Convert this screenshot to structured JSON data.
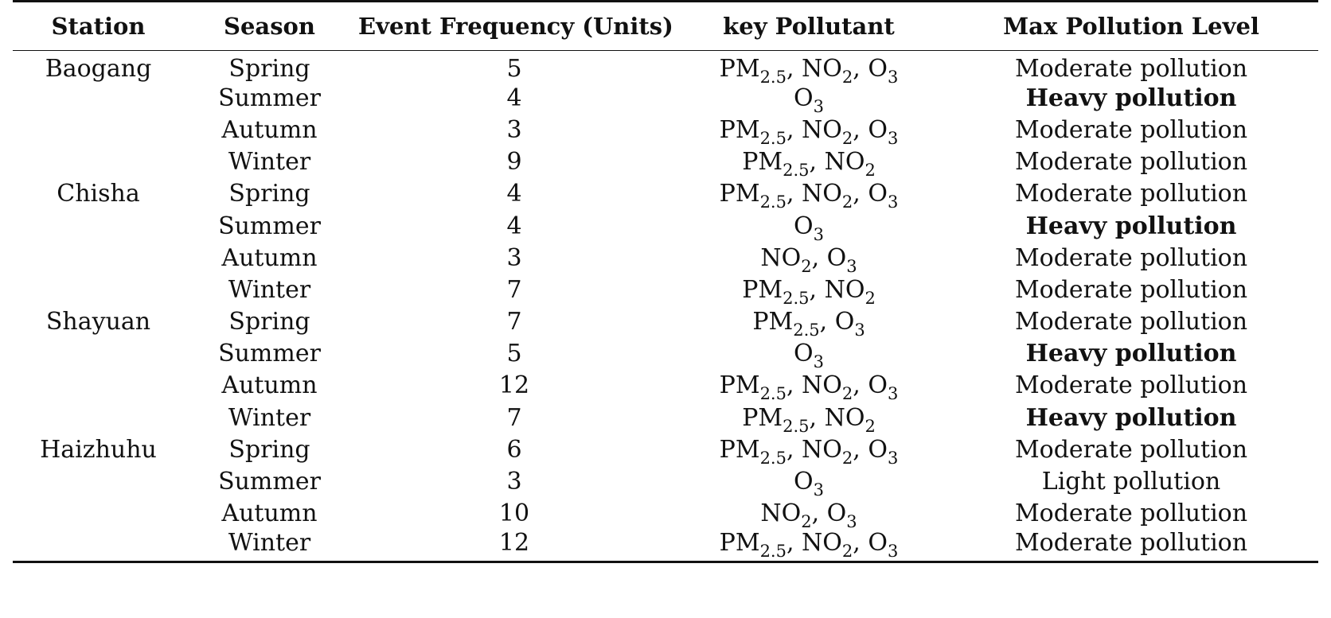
{
  "table": {
    "headers": [
      "Station",
      "Season",
      "Event Frequency (Units)",
      "key Pollutant",
      "Max Pollution Level"
    ],
    "rows": [
      {
        "station": "Baogang",
        "season": "Spring",
        "frequency": "5",
        "pollutants": [
          {
            "b": "PM",
            "s": "2.5"
          },
          {
            "b": "NO",
            "s": "2"
          },
          {
            "b": "O",
            "s": "3"
          }
        ],
        "level": "Moderate pollution",
        "bold": false
      },
      {
        "station": "",
        "season": "Summer",
        "frequency": "4",
        "pollutants": [
          {
            "b": "O",
            "s": "3"
          }
        ],
        "level": "Heavy pollution",
        "bold": true
      },
      {
        "station": "",
        "season": "Autumn",
        "frequency": "3",
        "pollutants": [
          {
            "b": "PM",
            "s": "2.5"
          },
          {
            "b": "NO",
            "s": "2"
          },
          {
            "b": "O",
            "s": "3"
          }
        ],
        "level": "Moderate pollution",
        "bold": false
      },
      {
        "station": "",
        "season": "Winter",
        "frequency": "9",
        "pollutants": [
          {
            "b": "PM",
            "s": "2.5"
          },
          {
            "b": "NO",
            "s": "2"
          }
        ],
        "level": "Moderate pollution",
        "bold": false
      },
      {
        "station": "Chisha",
        "season": "Spring",
        "frequency": "4",
        "pollutants": [
          {
            "b": "PM",
            "s": "2.5"
          },
          {
            "b": "NO",
            "s": "2"
          },
          {
            "b": "O",
            "s": "3"
          }
        ],
        "level": "Moderate pollution",
        "bold": false
      },
      {
        "station": "",
        "season": "Summer",
        "frequency": "4",
        "pollutants": [
          {
            "b": "O",
            "s": "3"
          }
        ],
        "level": "Heavy pollution",
        "bold": true
      },
      {
        "station": "",
        "season": "Autumn",
        "frequency": "3",
        "pollutants": [
          {
            "b": "NO",
            "s": "2"
          },
          {
            "b": "O",
            "s": "3"
          }
        ],
        "level": "Moderate pollution",
        "bold": false
      },
      {
        "station": "",
        "season": "Winter",
        "frequency": "7",
        "pollutants": [
          {
            "b": "PM",
            "s": "2.5"
          },
          {
            "b": "NO",
            "s": "2"
          }
        ],
        "level": "Moderate pollution",
        "bold": false
      },
      {
        "station": "Shayuan",
        "season": "Spring",
        "frequency": "7",
        "pollutants": [
          {
            "b": "PM",
            "s": "2.5"
          },
          {
            "b": "O",
            "s": "3"
          }
        ],
        "level": "Moderate pollution",
        "bold": false
      },
      {
        "station": "",
        "season": "Summer",
        "frequency": "5",
        "pollutants": [
          {
            "b": "O",
            "s": "3"
          }
        ],
        "level": "Heavy pollution",
        "bold": true
      },
      {
        "station": "",
        "season": "Autumn",
        "frequency": "12",
        "pollutants": [
          {
            "b": "PM",
            "s": "2.5"
          },
          {
            "b": "NO",
            "s": "2"
          },
          {
            "b": "O",
            "s": "3"
          }
        ],
        "level": "Moderate pollution",
        "bold": false
      },
      {
        "station": "",
        "season": "Winter",
        "frequency": "7",
        "pollutants": [
          {
            "b": "PM",
            "s": "2.5"
          },
          {
            "b": "NO",
            "s": "2"
          }
        ],
        "level": "Heavy pollution",
        "bold": true
      },
      {
        "station": "Haizhuhu",
        "season": "Spring",
        "frequency": "6",
        "pollutants": [
          {
            "b": "PM",
            "s": "2.5"
          },
          {
            "b": "NO",
            "s": "2"
          },
          {
            "b": "O",
            "s": "3"
          }
        ],
        "level": "Moderate pollution",
        "bold": false
      },
      {
        "station": "",
        "season": "Summer",
        "frequency": "3",
        "pollutants": [
          {
            "b": "O",
            "s": "3"
          }
        ],
        "level": "Light pollution",
        "bold": false
      },
      {
        "station": "",
        "season": "Autumn",
        "frequency": "10",
        "pollutants": [
          {
            "b": "NO",
            "s": "2"
          },
          {
            "b": "O",
            "s": "3"
          }
        ],
        "level": "Moderate pollution",
        "bold": false
      },
      {
        "station": "",
        "season": "Winter",
        "frequency": "12",
        "pollutants": [
          {
            "b": "PM",
            "s": "2.5"
          },
          {
            "b": "NO",
            "s": "2"
          },
          {
            "b": "O",
            "s": "3"
          }
        ],
        "level": "Moderate pollution",
        "bold": false
      }
    ]
  }
}
